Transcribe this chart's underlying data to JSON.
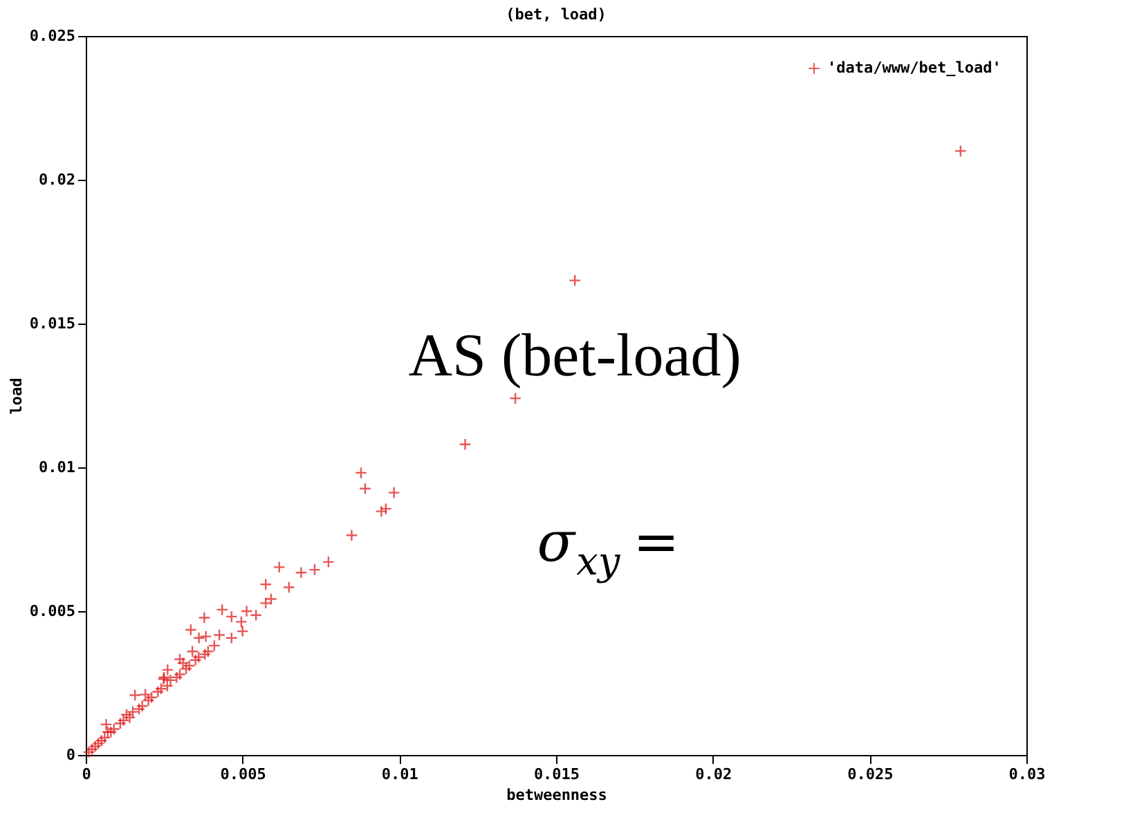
{
  "chart_data": {
    "type": "scatter",
    "title": "(bet, load)",
    "xlabel": "betweenness",
    "ylabel": "load",
    "xlim": [
      0,
      0.03
    ],
    "xticks": [
      0,
      0.005,
      0.01,
      0.015,
      0.02,
      0.025,
      0.03
    ],
    "ylim": [
      0,
      0.025
    ],
    "yticks": [
      0,
      0.005,
      0.01,
      0.015,
      0.02,
      0.025
    ],
    "grid": false,
    "legend": "top right",
    "marker": "cross",
    "annotations": [
      "AS (bet-load)",
      "σ$_{xy}$ ="
    ],
    "series": [
      {
        "name": "'data/www/bet_load'",
        "color": "#dd1111",
        "x": [
          0.0279,
          0.0156,
          0.0121,
          0.0137,
          0.00878,
          0.00891,
          0.00983,
          0.00943,
          0.00957,
          0.00848,
          0.00774,
          0.0073,
          0.00687,
          0.00617,
          0.00648,
          0.00574,
          0.00591,
          0.00574,
          0.00543,
          0.00513,
          0.00435,
          0.00378,
          0.00465,
          0.00496,
          0.005,
          0.00335,
          0.00465,
          0.00426,
          0.00383,
          0.00361,
          0.003,
          0.00261,
          0.00248,
          0.00157,
          0.00065,
          0.0004,
          0.0001,
          0.0002,
          0.0003,
          0.0005,
          0.0006,
          0.0008,
          0.0009,
          0.0011,
          0.0012,
          0.0014,
          0.0015,
          0.0017,
          0.0018,
          0.002,
          0.0021,
          0.0023,
          0.0024,
          0.0026,
          0.0027,
          0.0029,
          0.003,
          0.0032,
          0.0033,
          0.0035,
          0.0036,
          0.0038,
          0.0039,
          0.0041,
          0.0007,
          0.0013,
          0.0019,
          0.0025,
          0.0031,
          0.0034
        ],
        "values": [
          0.021,
          0.0165,
          0.0108,
          0.0124,
          0.00981,
          0.00926,
          0.00912,
          0.00847,
          0.00856,
          0.00764,
          0.00671,
          0.00644,
          0.00634,
          0.00653,
          0.00583,
          0.00593,
          0.00542,
          0.00528,
          0.00486,
          0.005,
          0.00505,
          0.00477,
          0.00481,
          0.00463,
          0.0043,
          0.00435,
          0.00407,
          0.00417,
          0.00412,
          0.00407,
          0.00333,
          0.00296,
          0.00264,
          0.00208,
          0.00106,
          0.0004,
          0.0001,
          0.0002,
          0.0003,
          0.0005,
          0.0006,
          0.0008,
          0.0009,
          0.0011,
          0.0012,
          0.0013,
          0.0015,
          0.0016,
          0.0017,
          0.0019,
          0.002,
          0.0022,
          0.0023,
          0.0024,
          0.0026,
          0.0027,
          0.0028,
          0.003,
          0.0031,
          0.0033,
          0.0034,
          0.0035,
          0.0036,
          0.0038,
          0.0008,
          0.0014,
          0.0021,
          0.0027,
          0.0032,
          0.0036
        ]
      }
    ]
  }
}
